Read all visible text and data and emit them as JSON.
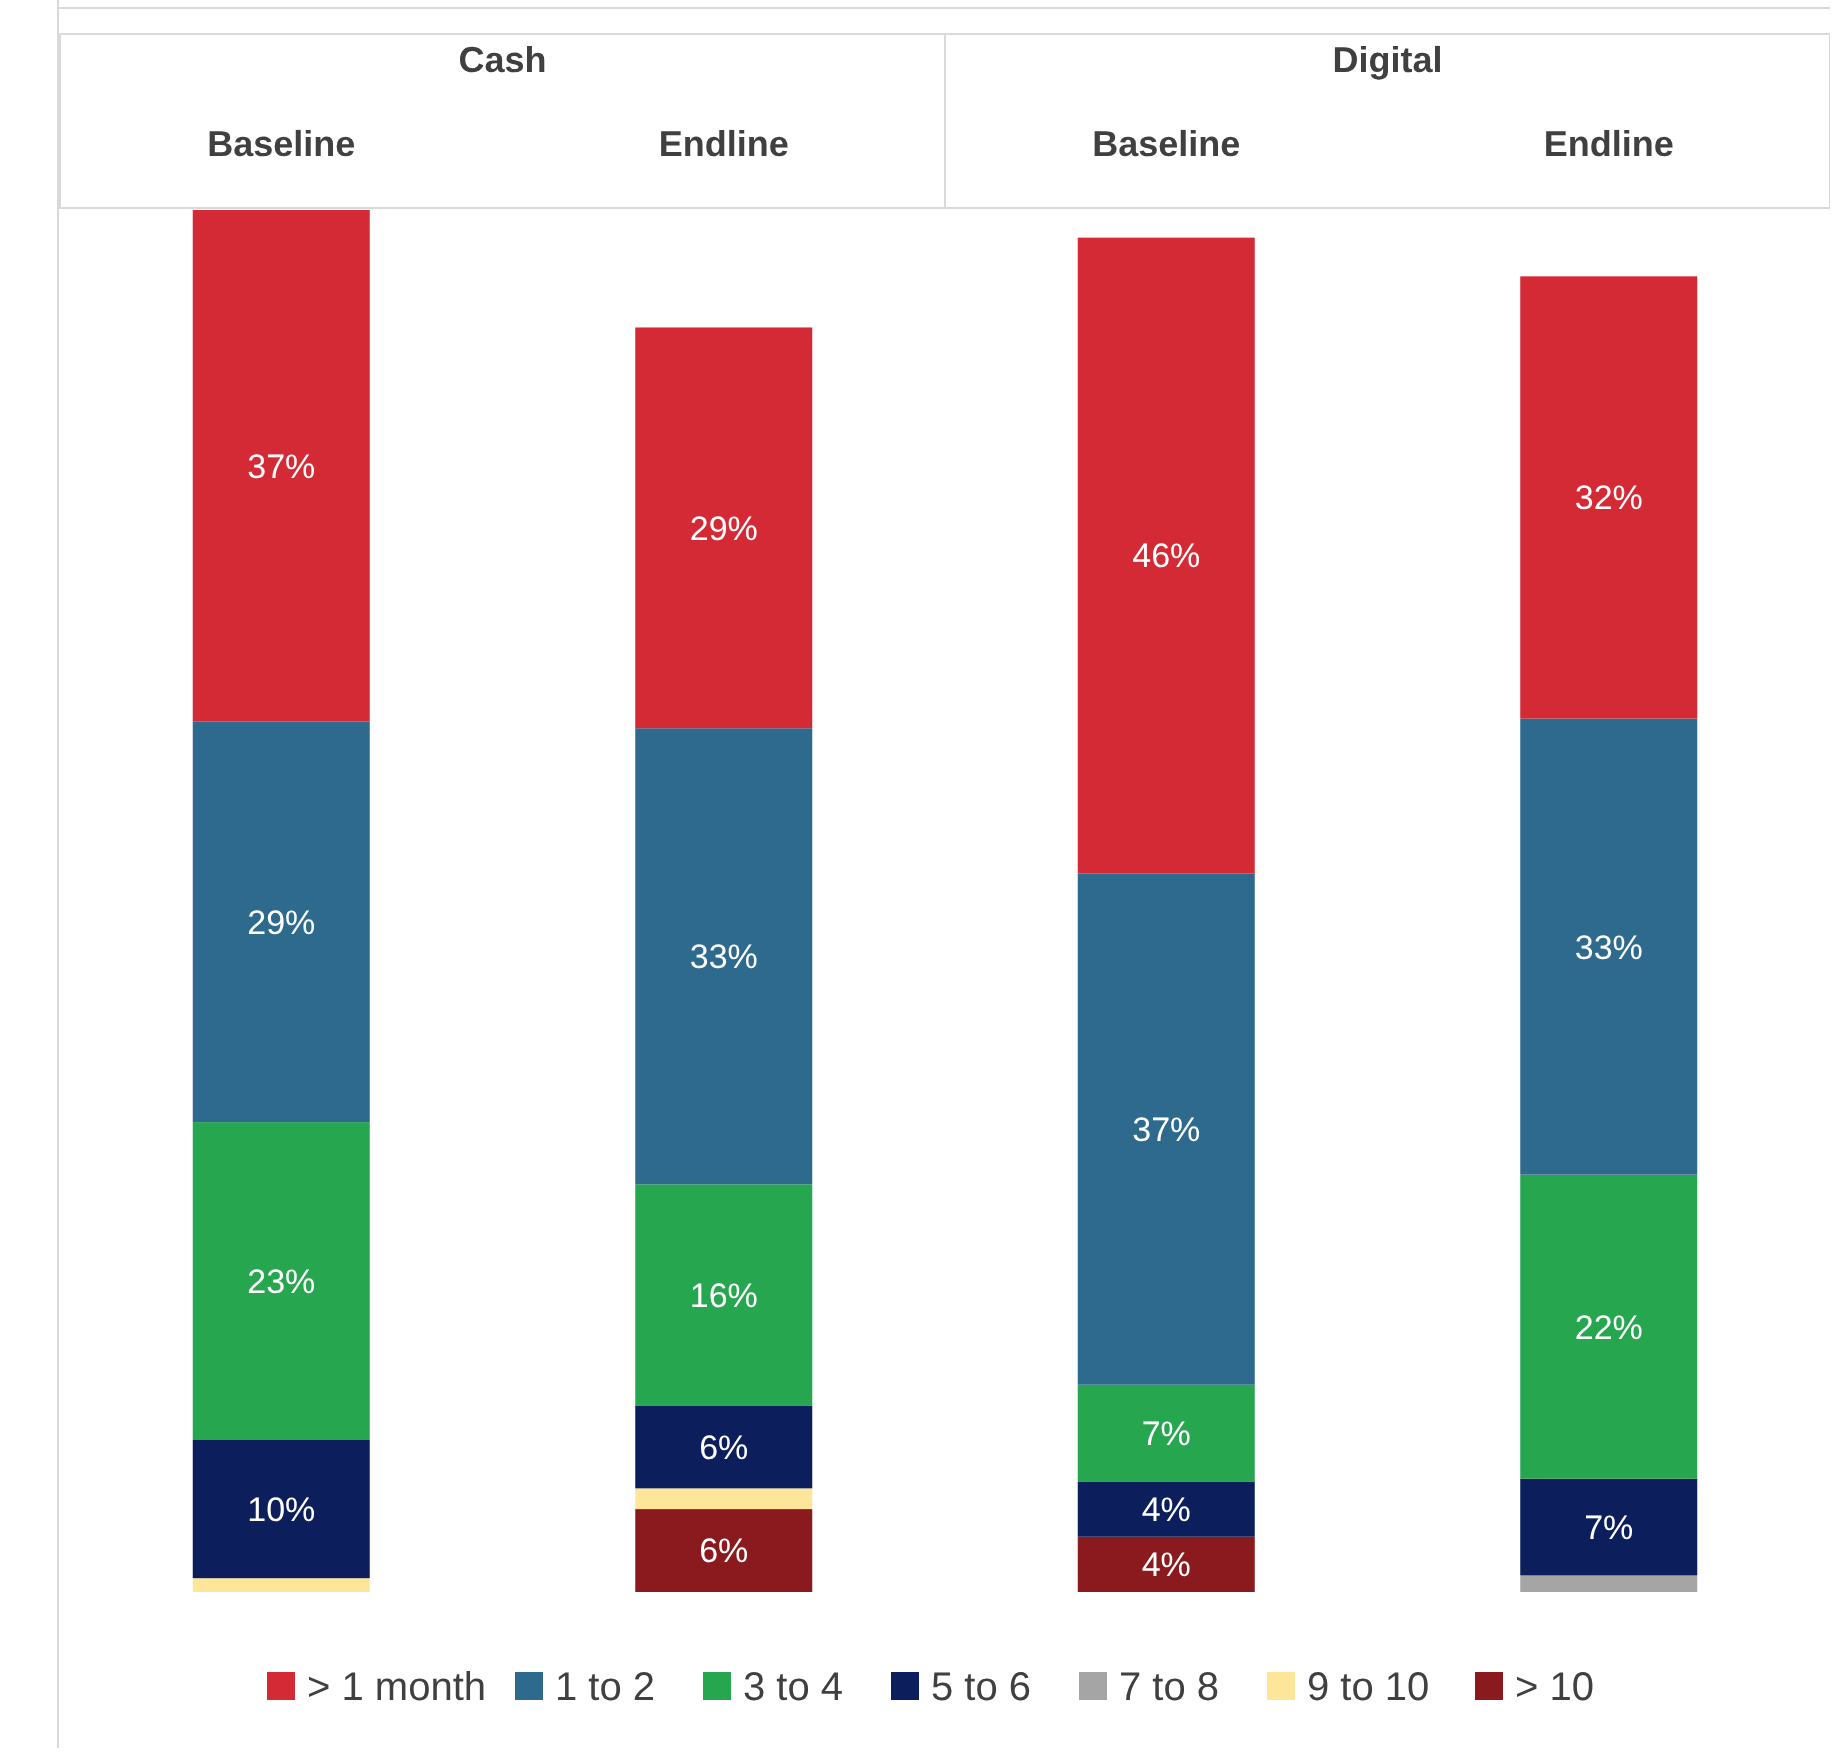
{
  "chart_data": {
    "type": "bar",
    "stacked": true,
    "legend": "bottom",
    "categories": [
      "Baseline",
      "Endline",
      "Baseline",
      "Endline"
    ],
    "annotations": [
      "Cash",
      "Digital"
    ],
    "series": [
      {
        "name": "> 10",
        "color": "#8b1a1f",
        "values": [
          null,
          6,
          4,
          null
        ],
        "value_labels": [
          null,
          "6%",
          "4%",
          null
        ]
      },
      {
        "name": "9 to 10",
        "color": "#fde69a",
        "values": [
          1,
          1.5,
          null,
          null
        ],
        "value_labels": [
          null,
          null,
          null,
          null
        ]
      },
      {
        "name": "7 to 8",
        "color": "#a5a5a5",
        "values": [
          null,
          null,
          null,
          1.2
        ],
        "value_labels": [
          null,
          null,
          null,
          null
        ]
      },
      {
        "name": "5 to 6",
        "color": "#0c1f5c",
        "values": [
          10,
          6,
          4,
          7
        ],
        "value_labels": [
          "10%",
          "6%",
          "4%",
          "7%"
        ]
      },
      {
        "name": "3 to 4",
        "color": "#27a650",
        "values": [
          23,
          16,
          7,
          22
        ],
        "value_labels": [
          "23%",
          "16%",
          "7%",
          "22%"
        ]
      },
      {
        "name": "1 to 2",
        "color": "#2e6a8e",
        "values": [
          29,
          33,
          37,
          33
        ],
        "value_labels": [
          "29%",
          "33%",
          "37%",
          "33%"
        ]
      },
      {
        "name": "> 1 month",
        "color": "#d42a35",
        "values": [
          37,
          29,
          46,
          32
        ],
        "value_labels": [
          "37%",
          "29%",
          "46%",
          "32%"
        ]
      }
    ]
  }
}
